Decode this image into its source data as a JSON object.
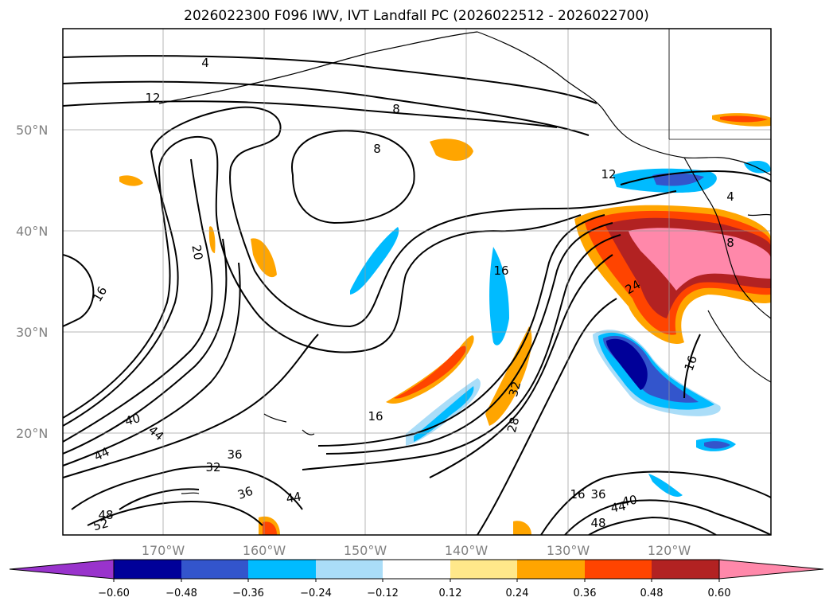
{
  "title": "2026022300 F096 IWV, IVT Landfall PC (2026022512 - 2026022700)",
  "latitude_labels": [
    "50°N",
    "40°N",
    "30°N",
    "20°N"
  ],
  "longitude_labels": [
    "170°W",
    "160°W",
    "150°W",
    "140°W",
    "130°W",
    "120°W"
  ],
  "contour_labels": [
    "4",
    "12",
    "8",
    "8",
    "12",
    "4",
    "8",
    "20",
    "16",
    "16",
    "24",
    "16",
    "16",
    "40",
    "44",
    "44",
    "36",
    "32",
    "36",
    "44",
    "28",
    "32",
    "36",
    "44",
    "40",
    "48",
    "48",
    "52",
    "16"
  ],
  "colorbar": {
    "ticks": [
      "−0.60",
      "−0.48",
      "−0.36",
      "−0.24",
      "−0.12",
      "0.12",
      "0.24",
      "0.36",
      "0.48",
      "0.60"
    ],
    "colors": [
      "#9933cc",
      "#000099",
      "#3355cc",
      "#00bbff",
      "#aaddf8",
      "#ffffff",
      "#ffe88a",
      "#ffa500",
      "#ff4400",
      "#b22222",
      "#ff88aa"
    ]
  }
}
